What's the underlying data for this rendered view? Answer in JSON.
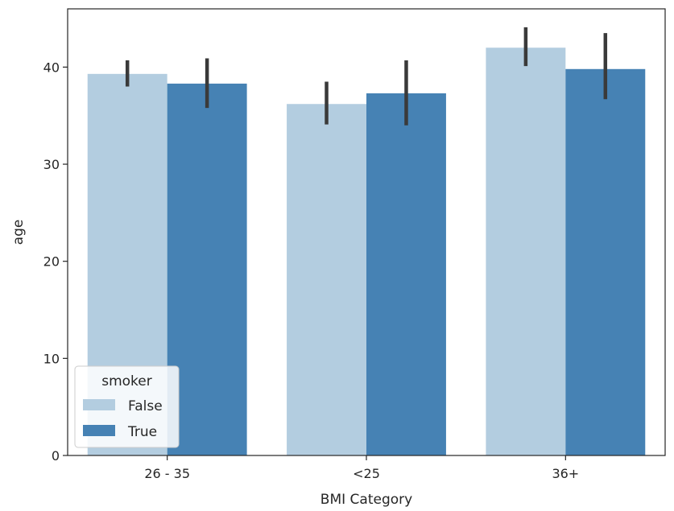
{
  "chart_data": {
    "type": "bar",
    "title": "",
    "xlabel": "BMI Category",
    "ylabel": "age",
    "categories": [
      "26 - 35",
      "<25",
      "36+"
    ],
    "ylim": [
      0,
      46
    ],
    "yticks": [
      0,
      10,
      20,
      30,
      40
    ],
    "grid": false,
    "legend": {
      "title": "smoker",
      "placement": "lower-left"
    },
    "series": [
      {
        "name": "False",
        "color": "#b3cde0",
        "values": [
          39.3,
          36.2,
          42.0
        ],
        "err_low": [
          38.0,
          34.1,
          40.1
        ],
        "err_high": [
          40.7,
          38.5,
          44.1
        ]
      },
      {
        "name": "True",
        "color": "#4682b4",
        "values": [
          38.3,
          37.3,
          39.8
        ],
        "err_low": [
          35.8,
          34.0,
          36.7
        ],
        "err_high": [
          40.9,
          40.7,
          43.5
        ]
      }
    ],
    "errorbar_color": "#3a3a3a"
  }
}
